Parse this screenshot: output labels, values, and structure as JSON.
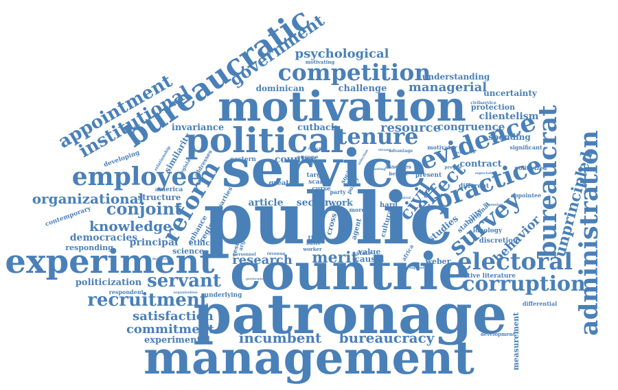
{
  "color": "#4a80b8",
  "words": [
    {
      "id": "management",
      "text": "management"
    },
    {
      "id": "patronage",
      "text": "patronage"
    },
    {
      "id": "public",
      "text": "public"
    },
    {
      "id": "countrie",
      "text": "countrie"
    },
    {
      "id": "service",
      "text": "service"
    },
    {
      "id": "motivation",
      "text": "motivation"
    },
    {
      "id": "experiment",
      "text": "experiment"
    },
    {
      "id": "political",
      "text": "political"
    },
    {
      "id": "bureaucratic",
      "text": "bureaucratic"
    },
    {
      "id": "administration",
      "text": "administration"
    },
    {
      "id": "competition",
      "text": "competition"
    },
    {
      "id": "employee",
      "text": "employee"
    },
    {
      "id": "electoral",
      "text": "electoral"
    },
    {
      "id": "corruption",
      "text": "corruption"
    },
    {
      "id": "bureaucrat",
      "text": "bureaucrat"
    },
    {
      "id": "evidence",
      "text": "evidence"
    },
    {
      "id": "practice",
      "text": "practice"
    },
    {
      "id": "survey",
      "text": "survey"
    },
    {
      "id": "reform",
      "text": "reform"
    },
    {
      "id": "tenure",
      "text": "tenure"
    },
    {
      "id": "recruitment",
      "text": "recruitment"
    },
    {
      "id": "servant",
      "text": "servant"
    },
    {
      "id": "government",
      "text": "government"
    },
    {
      "id": "institutional",
      "text": "institutional"
    },
    {
      "id": "appointment",
      "text": "appointment"
    },
    {
      "id": "unprincipled",
      "text": "unprincipled"
    },
    {
      "id": "incumbent",
      "text": "incumbent"
    },
    {
      "id": "bureaucracy",
      "text": "bureaucracy"
    },
    {
      "id": "organizational",
      "text": "organizational"
    },
    {
      "id": "conjoint",
      "text": "conjoint"
    },
    {
      "id": "knowledge",
      "text": "knowledge"
    },
    {
      "id": "research",
      "text": "research"
    },
    {
      "id": "merit",
      "text": "merit"
    },
    {
      "id": "satisfaction",
      "text": "satisfaction"
    },
    {
      "id": "commitment",
      "text": "commitment"
    },
    {
      "id": "experimental",
      "text": "experimental"
    },
    {
      "id": "psychological",
      "text": "psychological"
    },
    {
      "id": "managerial",
      "text": "managerial"
    },
    {
      "id": "resource",
      "text": "resource"
    },
    {
      "id": "congruence",
      "text": "congruence"
    },
    {
      "id": "effect",
      "text": "effect"
    },
    {
      "id": "behavior",
      "text": "behavior"
    },
    {
      "id": "civil",
      "text": "civil"
    },
    {
      "id": "challenge",
      "text": "challenge"
    },
    {
      "id": "dominican",
      "text": "dominican"
    },
    {
      "id": "invariance",
      "text": "invariance"
    },
    {
      "id": "cutback",
      "text": "cutback"
    },
    {
      "id": "clientelism",
      "text": "clientelism"
    },
    {
      "id": "protection",
      "text": "protection"
    },
    {
      "id": "uncertainty",
      "text": "uncertainty"
    },
    {
      "id": "understanding",
      "text": "understanding"
    },
    {
      "id": "spending",
      "text": "spending"
    },
    {
      "id": "politicization",
      "text": "politicization"
    },
    {
      "id": "principal",
      "text": "principal"
    },
    {
      "id": "democracies",
      "text": "democracies"
    },
    {
      "id": "responding",
      "text": "responding"
    },
    {
      "id": "contemporary",
      "text": "contemporary"
    },
    {
      "id": "structure",
      "text": "structure"
    },
    {
      "id": "sector",
      "text": "sector"
    },
    {
      "id": "article",
      "text": "article"
    },
    {
      "id": "country",
      "text": "country"
    },
    {
      "id": "eastern",
      "text": "eastern"
    },
    {
      "id": "studies",
      "text": "studies"
    },
    {
      "id": "contract",
      "text": "contract"
    },
    {
      "id": "incentive_literature",
      "text": "incentive literature"
    },
    {
      "id": "measurement",
      "text": "measurement"
    },
    {
      "id": "development",
      "text": "development"
    },
    {
      "id": "differential",
      "text": "differential"
    },
    {
      "id": "weber",
      "text": "weber"
    },
    {
      "id": "causal",
      "text": "causal"
    },
    {
      "id": "value",
      "text": "value"
    },
    {
      "id": "underlying",
      "text": "underlying"
    },
    {
      "id": "respondent",
      "text": "respondent"
    },
    {
      "id": "similarity",
      "text": "similarity"
    },
    {
      "id": "developing",
      "text": "developing"
    },
    {
      "id": "america",
      "text": "america"
    },
    {
      "id": "ethical",
      "text": "ethical"
    },
    {
      "id": "science",
      "text": "science"
    },
    {
      "id": "region",
      "text": "region"
    },
    {
      "id": "enhance",
      "text": "enhance"
    },
    {
      "id": "work",
      "text": "work"
    },
    {
      "id": "hard",
      "text": "hard"
    },
    {
      "id": "greater",
      "text": "greater"
    },
    {
      "id": "discretion",
      "text": "discretion"
    },
    {
      "id": "significant",
      "text": "significant"
    },
    {
      "id": "politicized",
      "text": "politicized"
    },
    {
      "id": "appointee",
      "text": "appointee"
    },
    {
      "id": "different",
      "text": "different"
    },
    {
      "id": "motivator",
      "text": "motivator"
    },
    {
      "id": "motivating",
      "text": "motivating"
    },
    {
      "id": "stability",
      "text": "stability"
    },
    {
      "id": "original",
      "text": "original"
    },
    {
      "id": "ideology",
      "text": "ideology"
    },
    {
      "id": "europe",
      "text": "europe"
    },
    {
      "id": "target",
      "text": "target"
    },
    {
      "id": "scale",
      "text": "scale"
    },
    {
      "id": "curse",
      "text": "curse"
    },
    {
      "id": "party",
      "text": "party"
    },
    {
      "id": "more",
      "text": "more"
    },
    {
      "id": "time",
      "text": "time"
    },
    {
      "id": "present",
      "text": "present"
    },
    {
      "id": "assesses",
      "text": "assesses"
    },
    {
      "id": "addresses",
      "text": "addresses"
    },
    {
      "id": "legislation",
      "text": "legislation"
    },
    {
      "id": "relationship",
      "text": "relationship"
    },
    {
      "id": "state",
      "text": "state"
    },
    {
      "id": "africa",
      "text": "africa"
    },
    {
      "id": "result",
      "text": "result"
    },
    {
      "id": "argument",
      "text": "argument"
    },
    {
      "id": "social",
      "text": "social"
    },
    {
      "id": "cross",
      "text": "cross"
    },
    {
      "id": "cause",
      "text": "cause"
    },
    {
      "id": "agent",
      "text": "agent"
    },
    {
      "id": "cultural",
      "text": "cultural"
    },
    {
      "id": "provide",
      "text": "provide"
    },
    {
      "id": "benefit",
      "text": "benefit"
    },
    {
      "id": "advantage",
      "text": "advantage"
    },
    {
      "id": "policy",
      "text": "policy"
    },
    {
      "id": "basis",
      "text": "basis"
    },
    {
      "id": "worker",
      "text": "worker"
    },
    {
      "id": "revenue",
      "text": "revenue"
    },
    {
      "id": "personnel",
      "text": "personnel"
    },
    {
      "id": "parties",
      "text": "parties"
    },
    {
      "id": "democracy",
      "text": "democracy"
    },
    {
      "id": "organization",
      "text": "organization"
    },
    {
      "id": "capacity",
      "text": "capacity"
    },
    {
      "id": "selection",
      "text": "selection"
    },
    {
      "id": "strong",
      "text": "strong"
    },
    {
      "id": "control",
      "text": "control"
    },
    {
      "id": "dimension",
      "text": "dimension"
    },
    {
      "id": "expectation",
      "text": "expectation"
    },
    {
      "id": "civilservice",
      "text": "civilservice"
    },
    {
      "id": "governance",
      "text": "governance"
    },
    {
      "id": "lasting",
      "text": "lasting"
    },
    {
      "id": "supporter",
      "text": "supporter"
    },
    {
      "id": "gatekeeping",
      "text": "gatekeeping"
    }
  ]
}
